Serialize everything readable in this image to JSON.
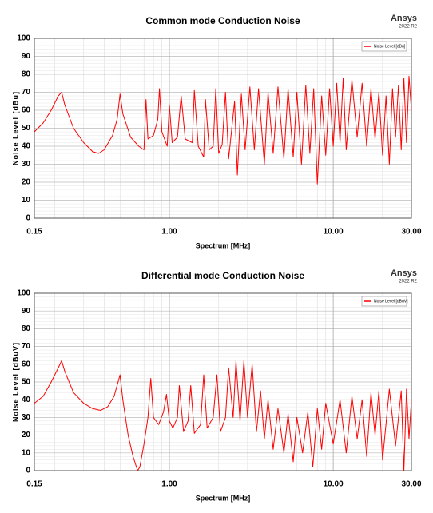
{
  "chart_data": [
    {
      "type": "line",
      "title": "Common mode Conduction Noise",
      "watermark": "Ansys",
      "watermark_sub": "2022 R2",
      "x_label": "Spectrum [MHz]",
      "y_label": "Noise Level [dBu]",
      "log_x": true,
      "grid": true,
      "legend": "upper right",
      "xlim": [
        0.15,
        30
      ],
      "xticks": [
        0.15,
        {
          "value": 1,
          "label": "1.00"
        },
        {
          "value": 10,
          "label": "10.00"
        },
        {
          "value": 30,
          "label": "30.00"
        }
      ],
      "ylim": [
        0,
        100
      ],
      "yticks": [
        0,
        10,
        20,
        30,
        40,
        50,
        60,
        70,
        80,
        90,
        100
      ],
      "x": [
        0.15,
        0.17,
        0.19,
        0.21,
        0.22,
        0.23,
        0.26,
        0.3,
        0.34,
        0.37,
        0.4,
        0.45,
        0.48,
        0.5,
        0.52,
        0.58,
        0.65,
        0.7,
        0.72,
        0.74,
        0.8,
        0.85,
        0.87,
        0.9,
        0.97,
        1.0,
        1.04,
        1.12,
        1.18,
        1.25,
        1.38,
        1.42,
        1.5,
        1.62,
        1.66,
        1.75,
        1.85,
        1.92,
        2.0,
        2.1,
        2.2,
        2.3,
        2.5,
        2.6,
        2.75,
        2.9,
        3.1,
        3.3,
        3.5,
        3.8,
        4.0,
        4.3,
        4.6,
        5.0,
        5.3,
        5.7,
        6.0,
        6.4,
        6.8,
        7.2,
        7.6,
        8.0,
        8.5,
        9.0,
        9.5,
        10,
        10.5,
        11,
        11.5,
        12,
        13,
        14,
        15,
        16,
        17,
        18,
        19,
        20,
        21,
        22,
        23,
        24,
        25,
        26,
        27,
        28,
        29,
        30
      ],
      "series": [
        {
          "name": "Noise Level [dBu]",
          "color": "#ff0000",
          "values": [
            48,
            53,
            60,
            68,
            70,
            63,
            50,
            42,
            37,
            36,
            38,
            46,
            55,
            69,
            58,
            45,
            40,
            38,
            66,
            44,
            46,
            55,
            72,
            48,
            40,
            63,
            42,
            45,
            68,
            44,
            42,
            71,
            40,
            34,
            66,
            38,
            40,
            72,
            36,
            41,
            70,
            33,
            65,
            24,
            69,
            38,
            73,
            38,
            72,
            30,
            70,
            36,
            73,
            33,
            72,
            34,
            70,
            30,
            74,
            36,
            72,
            19,
            68,
            35,
            72,
            40,
            75,
            42,
            78,
            38,
            77,
            45,
            75,
            40,
            72,
            44,
            70,
            35,
            68,
            30,
            72,
            45,
            74,
            38,
            78,
            42,
            79,
            60
          ]
        }
      ]
    },
    {
      "type": "line",
      "title": "Differential mode Conduction Noise",
      "watermark": "Ansys",
      "watermark_sub": "2022 R2",
      "x_label": "Spectrum [MHz]",
      "y_label": "Noise Level [dBuV]",
      "log_x": true,
      "grid": true,
      "legend": "upper right",
      "xlim": [
        0.15,
        30
      ],
      "xticks": [
        0.15,
        {
          "value": 1,
          "label": "1.00"
        },
        {
          "value": 10,
          "label": "10.00"
        },
        {
          "value": 30,
          "label": "30.00"
        }
      ],
      "ylim": [
        0,
        100
      ],
      "yticks": [
        0,
        10,
        20,
        30,
        40,
        50,
        60,
        70,
        80,
        90,
        100
      ],
      "x": [
        0.15,
        0.17,
        0.19,
        0.21,
        0.22,
        0.23,
        0.26,
        0.3,
        0.34,
        0.38,
        0.42,
        0.46,
        0.5,
        0.52,
        0.56,
        0.6,
        0.64,
        0.66,
        0.7,
        0.74,
        0.77,
        0.8,
        0.86,
        0.92,
        0.96,
        1.0,
        1.05,
        1.12,
        1.15,
        1.22,
        1.3,
        1.35,
        1.42,
        1.55,
        1.62,
        1.7,
        1.85,
        1.95,
        2.05,
        2.2,
        2.3,
        2.45,
        2.55,
        2.7,
        2.85,
        3.0,
        3.2,
        3.4,
        3.6,
        3.8,
        4.0,
        4.3,
        4.6,
        5.0,
        5.3,
        5.7,
        6.0,
        6.5,
        7.0,
        7.5,
        8.0,
        8.5,
        9.0,
        10,
        11,
        12,
        13,
        14,
        15,
        16,
        17,
        18,
        19,
        20,
        22,
        24,
        26,
        27,
        28,
        29,
        30
      ],
      "series": [
        {
          "name": "Noise Level [dBuV]",
          "color": "#ff0000",
          "values": [
            38,
            42,
            50,
            58,
            62,
            56,
            44,
            38,
            35,
            34,
            36,
            42,
            54,
            40,
            20,
            8,
            0,
            2,
            15,
            30,
            52,
            30,
            26,
            33,
            43,
            28,
            24,
            30,
            48,
            22,
            28,
            48,
            21,
            26,
            54,
            24,
            30,
            54,
            22,
            30,
            58,
            30,
            62,
            28,
            62,
            30,
            60,
            22,
            45,
            18,
            40,
            12,
            35,
            10,
            32,
            5,
            30,
            10,
            33,
            2,
            35,
            12,
            38,
            15,
            40,
            10,
            42,
            18,
            40,
            8,
            44,
            20,
            45,
            6,
            46,
            14,
            45,
            0,
            46,
            18,
            40
          ]
        }
      ]
    }
  ]
}
